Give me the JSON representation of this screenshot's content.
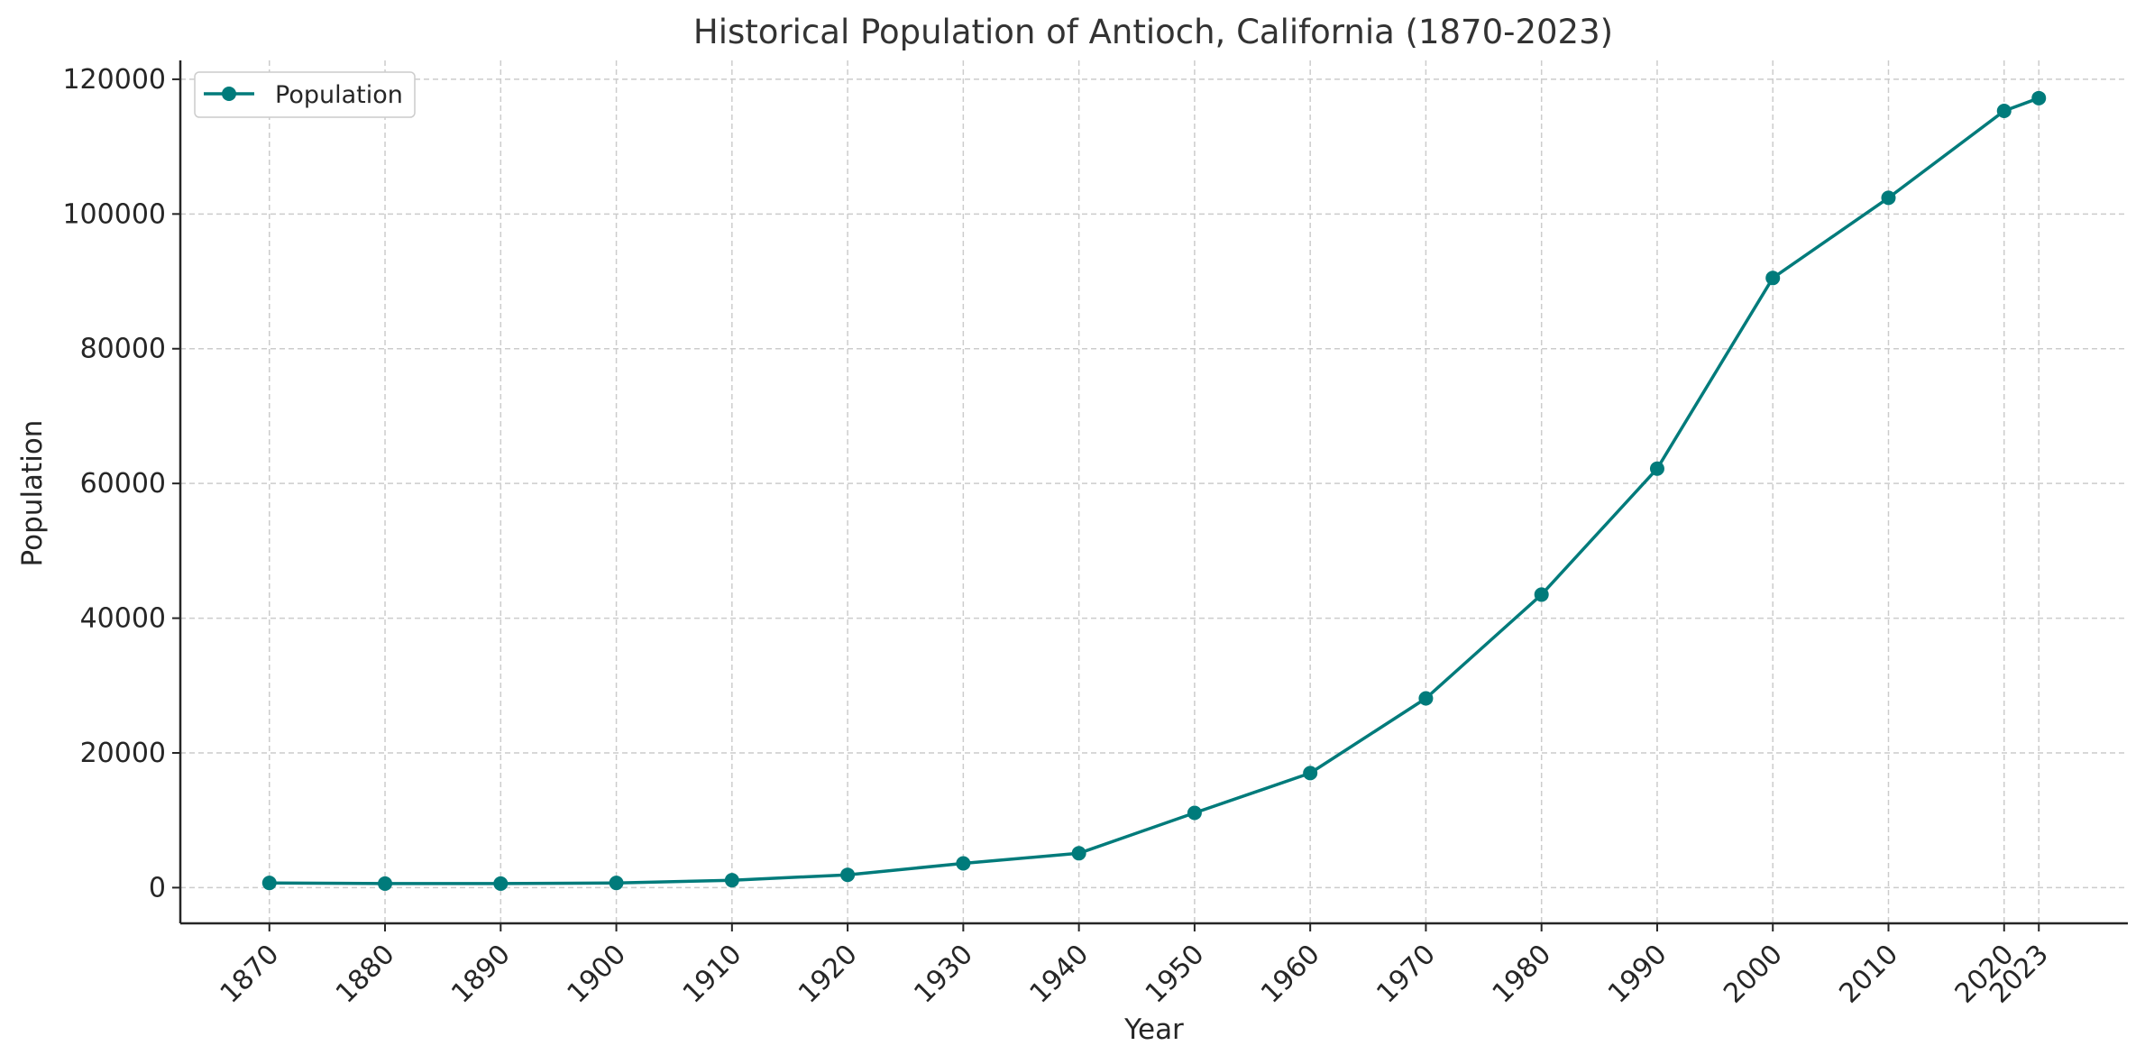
{
  "chart_data": {
    "type": "line",
    "title": "Historical Population of Antioch, California (1870-2023)",
    "xlabel": "Year",
    "ylabel": "Population",
    "x": [
      1870,
      1880,
      1890,
      1900,
      1910,
      1920,
      1930,
      1940,
      1950,
      1960,
      1970,
      1980,
      1990,
      2000,
      2010,
      2020,
      2023
    ],
    "x_tick_labels": [
      "1870",
      "1880",
      "1890",
      "1900",
      "1910",
      "1920",
      "1930",
      "1940",
      "1950",
      "1960",
      "1970",
      "1980",
      "1990",
      "2000",
      "2010",
      "2020",
      "2023"
    ],
    "y_tick_labels": [
      "0",
      "20000",
      "40000",
      "60000",
      "80000",
      "100000",
      "120000"
    ],
    "series": [
      {
        "name": "Population",
        "color": "#007b7b",
        "values": [
          700,
          600,
          600,
          700,
          1100,
          1900,
          3600,
          5100,
          11100,
          17000,
          28100,
          43500,
          62200,
          90500,
          102400,
          115300,
          117200
        ]
      }
    ],
    "xlim": [
      1862.3,
      2030.7
    ],
    "ylim": [
      -5300,
      122800
    ],
    "grid": true,
    "legend_position": "top-left"
  }
}
